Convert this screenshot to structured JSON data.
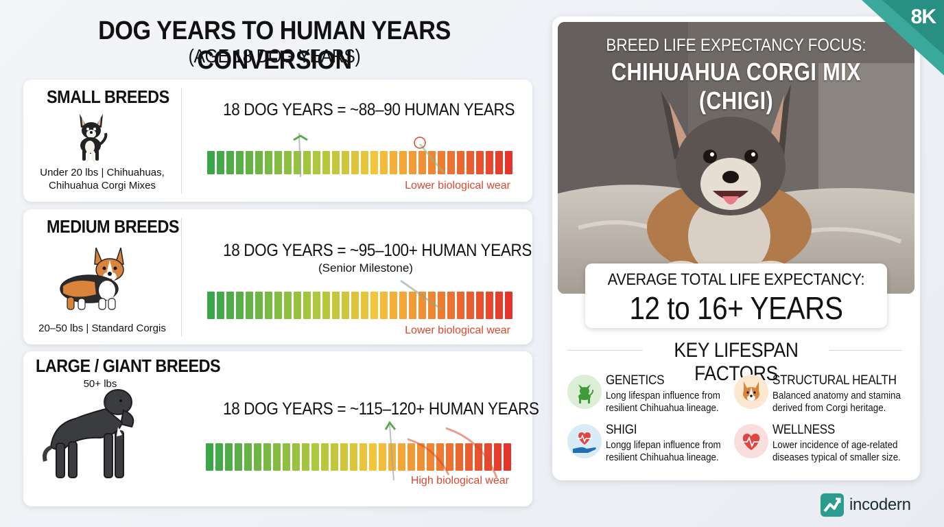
{
  "title": "DOG YEARS TO HUMAN YEARS CONVERSION",
  "subtitle": "(AGE 18 DOG YEARS)",
  "breeds": [
    {
      "name": "SMALL BREEDS",
      "desc_line1": "Under 20 lbs | Chihuahuas,",
      "desc_line2": "Chihuahua Corgi Mixes",
      "conversion": "18 DOG YEARS = ~88–90 HUMAN YEARS",
      "wear": "Lower biological wear",
      "bar_level": 0.7
    },
    {
      "name": "MEDIUM BREEDS",
      "desc_line1": "20–50 lbs | Standard Corgis",
      "conversion": "18 DOG YEARS = ~95–100+ HUMAN YEARS",
      "milestone": "(Senior Milestone)",
      "wear": "Lower biological wear",
      "bar_level": 0.67
    },
    {
      "name": "LARGE / GIANT BREEDS",
      "weight": "50+ lbs",
      "conversion": "18 DOG YEARS = ~115–120+ HUMAN YEARS",
      "wear": "High biological wear",
      "bar_level": 0.9
    }
  ],
  "focus": {
    "label": "BREED LIFE EXPECTANCY FOCUS:",
    "breed": "CHIHUAHUA CORGI MIX (CHIGI)",
    "life_label": "AVERAGE TOTAL LIFE EXPECTANCY:",
    "life_value": "12 to 16+ YEARS"
  },
  "factors_heading": "KEY LIFESPAN FACTORS",
  "factors": [
    {
      "title": "GENETICS",
      "desc_line1": "Long lifespan influence from",
      "desc_line2": "resilient Chihuahua lineage.",
      "icon": "small-dog-icon",
      "color": "#dcefd6"
    },
    {
      "title": "STRUCTURAL HEALTH",
      "desc_line1": "Balanced anatomy and stamina",
      "desc_line2": "derived from Corgi heritage.",
      "icon": "corgi-face-icon",
      "color": "#fbe8cf"
    },
    {
      "title": "SHIGI",
      "desc_line1": "Longg lifepan influence from",
      "desc_line2": "resilient Chihuahua lineage.",
      "icon": "heart-hand-icon",
      "color": "#d9ebf5"
    },
    {
      "title": "WELLNESS",
      "desc_line1": "Lower incidence of age-related",
      "desc_line2": "diseases typical of smaller size.",
      "icon": "heart-pulse-icon",
      "color": "#f9dede"
    }
  ],
  "badge": "8K",
  "logo": "incodern",
  "colors": {
    "accent_teal": "#2a9d8f",
    "wear_red": "#d9482b",
    "bar_green": "#3aa64a",
    "bar_red": "#e3352b"
  }
}
